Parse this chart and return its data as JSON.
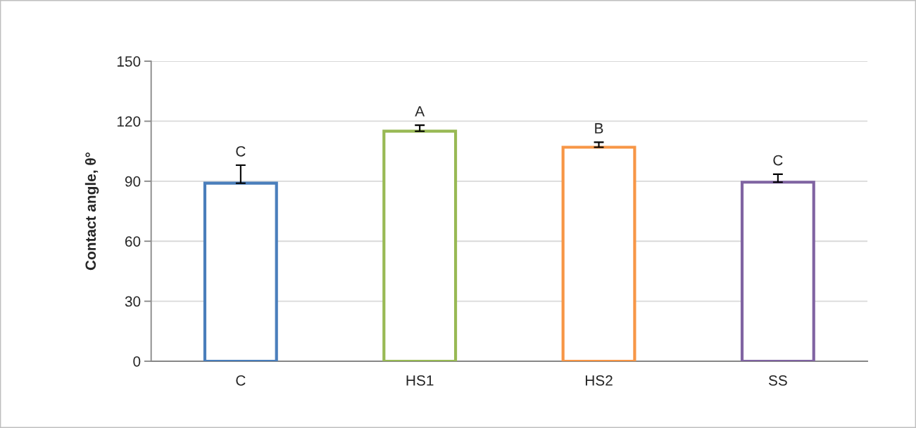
{
  "chart_data": {
    "type": "bar",
    "ylabel": "Contact angle, θ°",
    "categories": [
      "C",
      "HS1",
      "HS2",
      "SS"
    ],
    "values": [
      89,
      115,
      107,
      89.5
    ],
    "errors": [
      [
        89,
        98
      ],
      [
        115,
        118
      ],
      [
        107,
        109.5
      ],
      [
        89.5,
        93.5
      ]
    ],
    "colors": [
      "#4a7ebb",
      "#98b954",
      "#f79646",
      "#8064a2"
    ],
    "ylim": [
      0,
      150
    ],
    "yticks": [
      0,
      30,
      60,
      90,
      120,
      150
    ],
    "grid": "y",
    "annotations": [
      "C",
      "A",
      "B",
      "C"
    ]
  }
}
